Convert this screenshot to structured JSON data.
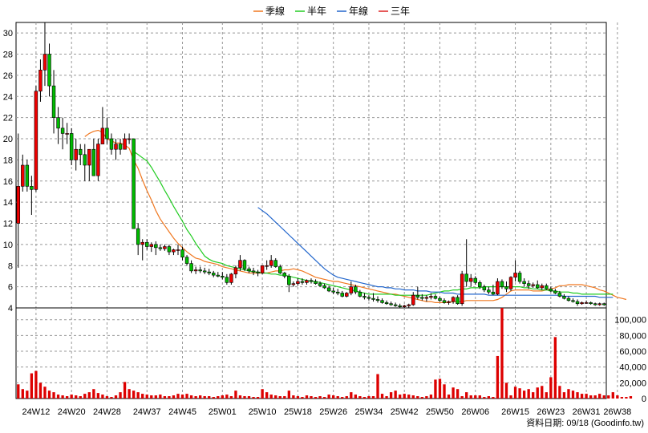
{
  "chart_data": {
    "type": "candlestick-with-volume",
    "legend": [
      {
        "label": "季線",
        "color": "#f07820"
      },
      {
        "label": "半年",
        "color": "#22cc22"
      },
      {
        "label": "年線",
        "color": "#2266cc"
      },
      {
        "label": "三年",
        "color": "#dd2222"
      }
    ],
    "legend_position": "top-center",
    "grid": true,
    "price_axis": {
      "ylim": [
        4,
        31
      ],
      "ticks": [
        4,
        6,
        8,
        10,
        12,
        14,
        16,
        18,
        20,
        22,
        24,
        26,
        28,
        30
      ]
    },
    "volume_axis": {
      "ylim": [
        0,
        115000
      ],
      "ticks": [
        0,
        20000,
        40000,
        60000,
        80000,
        100000
      ],
      "tick_labels": [
        "0",
        "20,000",
        "40,000",
        "60,000",
        "80,000",
        "100,000"
      ]
    },
    "x_labels": [
      "24W12",
      "24W20",
      "24W28",
      "24W37",
      "24W45",
      "25W01",
      "25W10",
      "25W18",
      "25W26",
      "25W34",
      "25W42",
      "25W50",
      "26W06",
      "26W15",
      "26W23",
      "26W31",
      "26W38"
    ],
    "x_label_index": [
      4,
      12,
      20,
      29,
      37,
      46,
      55,
      63,
      71,
      79,
      87,
      95,
      103,
      112,
      120,
      128,
      135
    ],
    "candles": [
      [
        12.0,
        20.5,
        7.8,
        15.5
      ],
      [
        15.5,
        18.5,
        15.0,
        17.5
      ],
      [
        17.5,
        18.0,
        15.0,
        15.5
      ],
      [
        15.5,
        16.5,
        12.8,
        15.2
      ],
      [
        15.2,
        25.0,
        15.0,
        24.5
      ],
      [
        24.5,
        27.5,
        23.5,
        26.5
      ],
      [
        26.5,
        31.0,
        25.0,
        28.0
      ],
      [
        28.0,
        29.0,
        24.0,
        25.0
      ],
      [
        25.0,
        26.5,
        20.5,
        22.0
      ],
      [
        22.0,
        23.0,
        19.5,
        21.0
      ],
      [
        21.0,
        22.0,
        19.0,
        20.5
      ],
      [
        20.5,
        21.5,
        19.5,
        20.5
      ],
      [
        20.5,
        21.0,
        17.5,
        18.0
      ],
      [
        18.0,
        20.0,
        17.0,
        19.0
      ],
      [
        19.0,
        19.5,
        17.5,
        18.5
      ],
      [
        18.5,
        19.5,
        16.0,
        17.5
      ],
      [
        17.5,
        19.0,
        16.0,
        19.0
      ],
      [
        19.0,
        20.0,
        16.5,
        16.5
      ],
      [
        16.5,
        20.0,
        16.0,
        19.5
      ],
      [
        19.5,
        23.0,
        19.5,
        21.0
      ],
      [
        21.0,
        22.0,
        19.5,
        20.0
      ],
      [
        20.0,
        20.5,
        18.5,
        19.0
      ],
      [
        19.0,
        20.0,
        18.0,
        19.5
      ],
      [
        19.5,
        20.0,
        18.5,
        19.0
      ],
      [
        19.0,
        20.5,
        19.0,
        20.0
      ],
      [
        20.0,
        20.5,
        19.5,
        20.0
      ],
      [
        20.0,
        20.0,
        11.5,
        11.5
      ],
      [
        11.5,
        12.0,
        9.0,
        10.0
      ],
      [
        10.0,
        10.5,
        8.5,
        10.2
      ],
      [
        10.2,
        10.5,
        9.5,
        9.8
      ],
      [
        9.8,
        10.2,
        9.3,
        10.0
      ],
      [
        10.0,
        10.3,
        9.0,
        9.7
      ],
      [
        9.7,
        10.0,
        9.4,
        9.6
      ],
      [
        9.6,
        10.0,
        9.4,
        9.8
      ],
      [
        9.8,
        10.0,
        9.0,
        9.3
      ],
      [
        9.3,
        9.6,
        9.0,
        9.5
      ],
      [
        9.5,
        10.0,
        9.0,
        9.5
      ],
      [
        9.5,
        9.8,
        8.5,
        8.8
      ],
      [
        8.8,
        9.0,
        8.0,
        8.2
      ],
      [
        8.2,
        8.5,
        7.3,
        7.5
      ],
      [
        7.5,
        7.9,
        7.2,
        7.6
      ],
      [
        7.6,
        7.9,
        7.3,
        7.5
      ],
      [
        7.5,
        7.8,
        7.2,
        7.4
      ],
      [
        7.4,
        7.7,
        7.1,
        7.3
      ],
      [
        7.3,
        7.5,
        6.9,
        7.1
      ],
      [
        7.1,
        7.4,
        6.9,
        7.0
      ],
      [
        7.0,
        7.4,
        6.7,
        6.9
      ],
      [
        6.9,
        7.2,
        6.2,
        6.4
      ],
      [
        6.4,
        7.3,
        6.2,
        7.2
      ],
      [
        7.2,
        8.0,
        6.8,
        7.8
      ],
      [
        7.8,
        9.0,
        7.5,
        8.5
      ],
      [
        8.5,
        8.6,
        7.5,
        7.7
      ],
      [
        7.7,
        7.9,
        7.3,
        7.5
      ],
      [
        7.5,
        7.8,
        7.1,
        7.4
      ],
      [
        7.4,
        7.6,
        7.0,
        7.3
      ],
      [
        7.3,
        8.0,
        7.2,
        8.0
      ],
      [
        8.0,
        8.5,
        7.6,
        8.0
      ],
      [
        8.0,
        9.0,
        7.8,
        8.5
      ],
      [
        8.5,
        8.7,
        7.8,
        7.9
      ],
      [
        7.9,
        8.1,
        7.2,
        7.3
      ],
      [
        7.3,
        7.4,
        6.8,
        7.0
      ],
      [
        7.0,
        7.2,
        5.5,
        6.2
      ],
      [
        6.2,
        6.5,
        6.0,
        6.3
      ],
      [
        6.3,
        6.8,
        6.1,
        6.5
      ],
      [
        6.5,
        6.8,
        6.2,
        6.4
      ],
      [
        6.4,
        6.7,
        6.2,
        6.6
      ],
      [
        6.6,
        6.8,
        6.3,
        6.5
      ],
      [
        6.5,
        6.7,
        6.2,
        6.3
      ],
      [
        6.3,
        6.5,
        6.0,
        6.1
      ],
      [
        6.1,
        6.3,
        5.8,
        5.9
      ],
      [
        5.9,
        6.1,
        5.5,
        5.6
      ],
      [
        5.6,
        5.9,
        5.3,
        5.5
      ],
      [
        5.5,
        5.8,
        5.2,
        5.4
      ],
      [
        5.4,
        5.6,
        5.0,
        5.1
      ],
      [
        5.1,
        5.5,
        5.0,
        5.4
      ],
      [
        5.4,
        6.5,
        5.2,
        6.0
      ],
      [
        6.0,
        6.2,
        5.3,
        5.5
      ],
      [
        5.5,
        5.7,
        5.0,
        5.1
      ],
      [
        5.1,
        5.4,
        4.8,
        5.0
      ],
      [
        5.0,
        5.2,
        4.7,
        4.9
      ],
      [
        4.9,
        5.4,
        4.6,
        4.8
      ],
      [
        4.8,
        5.1,
        4.5,
        4.7
      ],
      [
        4.7,
        4.9,
        4.4,
        4.5
      ],
      [
        4.5,
        4.7,
        4.3,
        4.4
      ],
      [
        4.4,
        4.6,
        4.2,
        4.3
      ],
      [
        4.3,
        4.5,
        4.1,
        4.2
      ],
      [
        4.2,
        4.4,
        4.0,
        4.1
      ],
      [
        4.1,
        4.3,
        4.0,
        4.2
      ],
      [
        4.2,
        4.4,
        4.0,
        4.3
      ],
      [
        4.3,
        5.5,
        4.2,
        5.2
      ],
      [
        5.2,
        6.0,
        4.8,
        5.0
      ],
      [
        5.0,
        5.3,
        4.7,
        4.9
      ],
      [
        4.9,
        5.2,
        4.6,
        5.0
      ],
      [
        5.0,
        5.4,
        4.8,
        5.1
      ],
      [
        5.1,
        5.3,
        4.8,
        4.9
      ],
      [
        4.9,
        5.1,
        4.6,
        4.7
      ],
      [
        4.7,
        4.9,
        4.4,
        4.5
      ],
      [
        4.5,
        4.7,
        4.3,
        4.6
      ],
      [
        4.6,
        5.1,
        4.4,
        5.0
      ],
      [
        5.0,
        5.2,
        4.3,
        4.4
      ],
      [
        4.4,
        7.5,
        4.2,
        7.2
      ],
      [
        7.2,
        10.5,
        6.0,
        6.5
      ],
      [
        6.5,
        7.2,
        6.0,
        6.8
      ],
      [
        6.8,
        7.0,
        6.2,
        6.4
      ],
      [
        6.4,
        6.6,
        5.8,
        6.0
      ],
      [
        6.0,
        6.2,
        5.5,
        5.7
      ],
      [
        5.7,
        6.0,
        5.3,
        5.5
      ],
      [
        5.5,
        6.2,
        5.2,
        5.3
      ],
      [
        5.3,
        6.8,
        5.2,
        6.5
      ],
      [
        6.5,
        6.7,
        5.8,
        6.0
      ],
      [
        6.0,
        6.5,
        5.5,
        5.8
      ],
      [
        5.8,
        7.0,
        5.6,
        6.9
      ],
      [
        6.9,
        8.5,
        6.5,
        7.3
      ],
      [
        7.3,
        7.5,
        6.3,
        6.5
      ],
      [
        6.5,
        6.8,
        6.0,
        6.3
      ],
      [
        6.3,
        6.6,
        5.8,
        6.1
      ],
      [
        6.1,
        6.4,
        5.9,
        6.2
      ],
      [
        6.2,
        6.6,
        5.8,
        5.9
      ],
      [
        5.9,
        6.3,
        5.7,
        6.1
      ],
      [
        6.1,
        6.3,
        5.7,
        5.8
      ],
      [
        5.8,
        6.0,
        5.5,
        5.6
      ],
      [
        5.6,
        5.8,
        5.3,
        5.4
      ],
      [
        5.4,
        5.6,
        5.0,
        5.1
      ],
      [
        5.1,
        5.3,
        4.8,
        4.9
      ],
      [
        4.9,
        5.1,
        4.6,
        4.7
      ],
      [
        4.7,
        4.9,
        4.5,
        4.6
      ],
      [
        4.6,
        4.8,
        4.2,
        4.4
      ],
      [
        4.4,
        4.6,
        4.3,
        4.5
      ],
      [
        4.5,
        4.7,
        4.4,
        4.5
      ],
      [
        4.5,
        4.6,
        4.3,
        4.4
      ],
      [
        4.4,
        4.5,
        4.2,
        4.3
      ],
      [
        4.3,
        4.5,
        4.2,
        4.4
      ],
      [
        4.4,
        4.5,
        4.2,
        4.3
      ]
    ],
    "volume": [
      18000,
      12000,
      10000,
      32000,
      35000,
      20000,
      15000,
      10000,
      8000,
      5000,
      4000,
      3000,
      5000,
      4000,
      3000,
      6000,
      8000,
      12000,
      7000,
      5000,
      3000,
      2000,
      4000,
      8000,
      21000,
      12000,
      10000,
      8000,
      6000,
      5000,
      4000,
      4000,
      5000,
      3000,
      3000,
      4000,
      6000,
      5000,
      6000,
      4000,
      3000,
      4000,
      3000,
      3000,
      2000,
      3000,
      4000,
      5000,
      3000,
      10000,
      4000,
      3000,
      3000,
      2000,
      2000,
      12000,
      8000,
      5000,
      4000,
      3000,
      3000,
      10000,
      4000,
      3000,
      2000,
      4000,
      3000,
      2000,
      3000,
      2000,
      5000,
      4000,
      3000,
      2000,
      3000,
      8000,
      5000,
      3000,
      2000,
      3000,
      3000,
      31000,
      6000,
      3000,
      8000,
      10000,
      5000,
      6000,
      5000,
      4000,
      3000,
      2000,
      3000,
      5000,
      24000,
      25000,
      18000,
      5000,
      14000,
      12000,
      3000,
      8000,
      4000,
      4000,
      4000,
      2000,
      3000,
      2000,
      54000,
      117000,
      20000,
      4000,
      15000,
      13000,
      10000,
      12000,
      8000,
      14000,
      16000,
      8000,
      27000,
      78000,
      16000,
      8000,
      12000,
      10000,
      8000,
      6000,
      6000,
      4000,
      4000,
      6000,
      4000,
      4000,
      8000,
      4000,
      2000,
      2000,
      3000
    ],
    "ma_series": [
      {
        "name": "季線",
        "color": "#f07820",
        "start": 15,
        "values": [
          20.2,
          20.5,
          20.7,
          20.8,
          20.6,
          20.0,
          19.8,
          19.6,
          19.6,
          19.4,
          19.1,
          18.0,
          17.2,
          16.1,
          15.1,
          14.2,
          13.2,
          12.4,
          11.8,
          11.2,
          10.6,
          10.1,
          9.7,
          9.3,
          9.0,
          8.7,
          8.6,
          8.4,
          8.3,
          8.2,
          8.1,
          7.9,
          7.8,
          7.7,
          7.6,
          7.5,
          7.4,
          7.3,
          7.3,
          7.3,
          7.3,
          7.3,
          7.4,
          7.5,
          7.5,
          7.6,
          7.6,
          7.7,
          7.6,
          7.5,
          7.3,
          7.1,
          6.9,
          6.8,
          6.7,
          6.6,
          6.5,
          6.5,
          6.4,
          6.3,
          6.2,
          6.1,
          6.0,
          5.9,
          5.8,
          5.7,
          5.6,
          5.5,
          5.4,
          5.3,
          5.3,
          5.2,
          5.1,
          5.0,
          4.9,
          4.8,
          4.7,
          4.6,
          4.6,
          4.5,
          4.5,
          4.5,
          4.5,
          4.6,
          4.6,
          4.6,
          4.7,
          4.7,
          4.7,
          4.7,
          4.7,
          4.7,
          4.7,
          4.8,
          5.0,
          5.3,
          5.6,
          5.7,
          5.7,
          5.7,
          5.7,
          5.6,
          5.6,
          5.6,
          5.7,
          5.8,
          5.9,
          6.1,
          6.1,
          6.2,
          6.2,
          6.2,
          6.2,
          6.1,
          6.0,
          5.9,
          5.7,
          5.6,
          5.4,
          5.2,
          5.0,
          4.9,
          4.8
        ]
      },
      {
        "name": "半年",
        "color": "#22cc22",
        "start": 26,
        "values": [
          18.8,
          18.5,
          18.2,
          17.9,
          17.3,
          16.6,
          15.9,
          15.1,
          14.4,
          13.6,
          12.9,
          12.2,
          11.4,
          10.8,
          10.1,
          9.5,
          8.9,
          8.6,
          8.4,
          8.3,
          8.2,
          8.0,
          7.9,
          7.8,
          7.7,
          7.6,
          7.5,
          7.4,
          7.4,
          7.3,
          7.3,
          7.2,
          7.2,
          7.1,
          7.1,
          7.0,
          6.9,
          6.8,
          6.7,
          6.6,
          6.5,
          6.5,
          6.4,
          6.3,
          6.2,
          6.1,
          6.0,
          5.9,
          5.8,
          5.7,
          5.6,
          5.5,
          5.4,
          5.3,
          5.3,
          5.3,
          5.3,
          5.3,
          5.3,
          5.2,
          5.2,
          5.2,
          5.2,
          5.2,
          5.2,
          5.2,
          5.2,
          5.3,
          5.4,
          5.5,
          5.6,
          5.6,
          5.7,
          5.7,
          5.8,
          5.8,
          5.9,
          5.9,
          5.9,
          6.0,
          6.0,
          6.0,
          6.0,
          6.0,
          6.0,
          6.0,
          6.0,
          6.0,
          5.9,
          5.9,
          5.8,
          5.8,
          5.7,
          5.7,
          5.6,
          5.6,
          5.5,
          5.5,
          5.5,
          5.4,
          5.4,
          5.3,
          5.3,
          5.3,
          5.3,
          5.3,
          5.3,
          5.3,
          5.3
        ]
      },
      {
        "name": "年線",
        "color": "#2266cc",
        "start": 54,
        "values": [
          13.5,
          13.2,
          12.9,
          12.5,
          12.1,
          11.7,
          11.3,
          10.9,
          10.5,
          10.1,
          9.7,
          9.3,
          8.9,
          8.5,
          8.1,
          7.7,
          7.4,
          7.1,
          6.9,
          6.8,
          6.7,
          6.6,
          6.5,
          6.4,
          6.3,
          6.2,
          6.1,
          6.0,
          6.0,
          5.9,
          5.9,
          5.8,
          5.8,
          5.7,
          5.7,
          5.7,
          5.6,
          5.6,
          5.6,
          5.5,
          5.5,
          5.5,
          5.4,
          5.4,
          5.4,
          5.3,
          5.3,
          5.3,
          5.3,
          5.3,
          5.3,
          5.3,
          5.2,
          5.2,
          5.2,
          5.2,
          5.2,
          5.2,
          5.2,
          5.2,
          5.2,
          5.2,
          5.2,
          5.2,
          5.2,
          5.2,
          5.2,
          5.2,
          5.2,
          5.1,
          5.1,
          5.1,
          5.1,
          5.1,
          5.1,
          5.1,
          5.1,
          5.0,
          5.0,
          5.0,
          5.0
        ]
      }
    ]
  },
  "footer": {
    "source": "資料日期: 09/18  (Goodinfo.tw)"
  }
}
